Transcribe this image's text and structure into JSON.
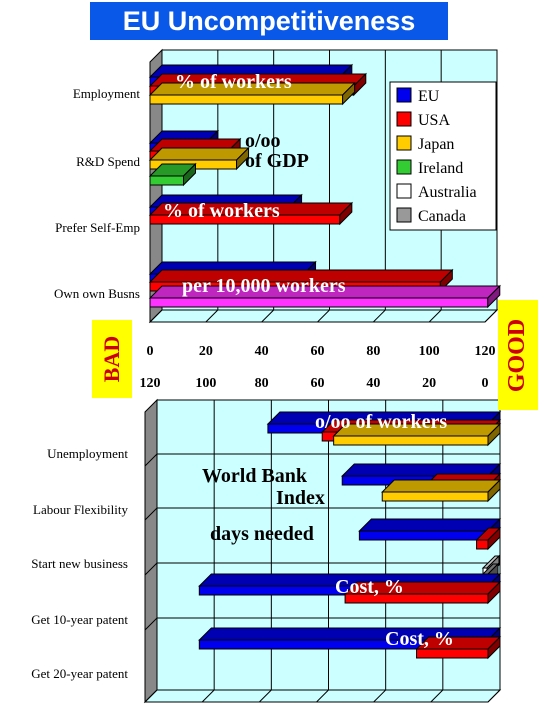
{
  "title": "EU Uncompetitiveness",
  "bad_label": "BAD",
  "good_label": "GOOD",
  "colors": {
    "title_bg": "#0a58e8",
    "plot_bg": "#ccffff",
    "EU": "#0000ee",
    "USA": "#ff0000",
    "Japan": "#ffcc00",
    "Ireland": "#33cc33",
    "Australia": "#ffffff",
    "Canada": "#999999",
    "Pink": "#ff33ff",
    "tag_bg": "#ffff00",
    "tag_text": "#cc0000"
  },
  "chart_data": [
    {
      "type": "bar",
      "orientation": "horizontal",
      "categories": [
        "Employment",
        "R&D Spend",
        "Prefer Self-Emp",
        "Own own Busns"
      ],
      "xlim": [
        0,
        120
      ],
      "x_ticks": [
        "0",
        "20",
        "40",
        "60",
        "80",
        "100",
        "120"
      ],
      "reverse_ticks": [
        "120",
        "100",
        "80",
        "60",
        "40",
        "20",
        "0"
      ],
      "legend": {
        "position": "top-right",
        "entries": [
          "EU",
          "USA",
          "Japan",
          "Ireland",
          "Australia",
          "Canada"
        ]
      },
      "annotations": [
        "% of workers",
        "o/oo\nof GDP",
        "% of workers",
        "per 10,000 workers"
      ],
      "bars": [
        {
          "category": "Employment",
          "series": "EU",
          "value": 68
        },
        {
          "category": "Employment",
          "series": "USA",
          "value": 73
        },
        {
          "category": "Employment",
          "series": "Japan",
          "value": 69
        },
        {
          "category": "R&D Spend",
          "series": "EU",
          "value": 20
        },
        {
          "category": "R&D Spend",
          "series": "USA",
          "value": 28
        },
        {
          "category": "R&D Spend",
          "series": "Japan",
          "value": 31
        },
        {
          "category": "R&D Spend",
          "series": "Ireland",
          "value": 12
        },
        {
          "category": "Prefer Self-Emp",
          "series": "EU",
          "value": 50
        },
        {
          "category": "Prefer Self-Emp",
          "series": "USA",
          "value": 68
        },
        {
          "category": "Own own Busns",
          "series": "EU",
          "value": 55
        },
        {
          "category": "Own own Busns",
          "series": "USA",
          "value": 104
        },
        {
          "category": "Own own Busns",
          "series": "Pink",
          "value": 121
        }
      ]
    },
    {
      "type": "bar",
      "orientation": "horizontal",
      "direction": "reversed",
      "categories": [
        "Unemployment",
        "Labour Flexibility",
        "Start new business",
        "Get 10-year patent",
        "Get 20-year patent"
      ],
      "xlim": [
        120,
        0
      ],
      "annotations": [
        "o/oo of workers",
        "World Bank\nIndex",
        "days needed",
        "Cost, %",
        "Cost,  %"
      ],
      "bars": [
        {
          "category": "Unemployment",
          "series": "EU",
          "value": 77
        },
        {
          "category": "Unemployment",
          "series": "USA",
          "value": 58
        },
        {
          "category": "Unemployment",
          "series": "Japan",
          "value": 54
        },
        {
          "category": "Labour Flexibility",
          "series": "EU",
          "value": 51
        },
        {
          "category": "Labour Flexibility",
          "series": "USA",
          "value": 22
        },
        {
          "category": "Labour Flexibility",
          "series": "Japan",
          "value": 37
        },
        {
          "category": "Start new business",
          "series": "EU",
          "value": 45
        },
        {
          "category": "Start new business",
          "series": "USA",
          "value": 4
        },
        {
          "category": "Start new business",
          "series": "Australia",
          "value": 2
        },
        {
          "category": "Start new business",
          "series": "Canada",
          "value": 2
        },
        {
          "category": "Get 10-year patent",
          "series": "EU",
          "value": 101
        },
        {
          "category": "Get 10-year patent",
          "series": "USA",
          "value": 50
        },
        {
          "category": "Get 20-year patent",
          "series": "EU",
          "value": 101
        },
        {
          "category": "Get 20-year patent",
          "series": "USA",
          "value": 25
        }
      ]
    }
  ]
}
